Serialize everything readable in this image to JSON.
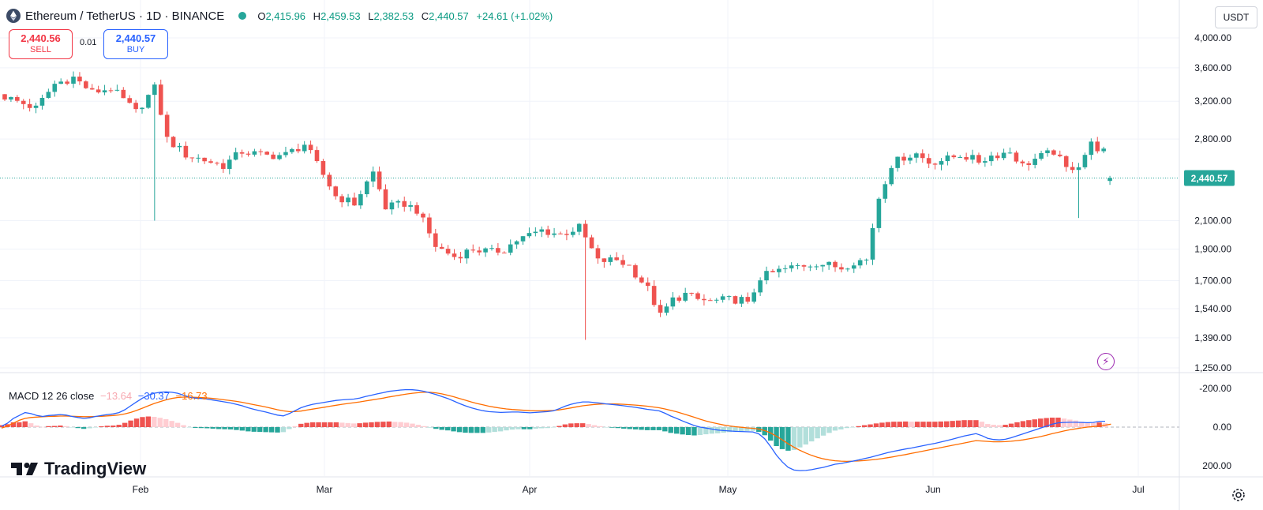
{
  "header": {
    "symbol": "Ethereum / TetherUS · 1D · BINANCE",
    "o_label": "O",
    "o": "2,415.96",
    "h_label": "H",
    "h": "2,459.53",
    "l_label": "L",
    "l": "2,382.53",
    "c_label": "C",
    "c": "2,440.57",
    "change": "+24.61 (+1.02%)"
  },
  "trade": {
    "sell_price": "2,440.56",
    "sell_label": "SELL",
    "spread": "0.01",
    "buy_price": "2,440.57",
    "buy_label": "BUY"
  },
  "currency": "USDT",
  "last_price_tag": "2,440.57",
  "macd": {
    "label": "MACD 12 26 close",
    "hist_value": "−13.64",
    "macd_value": "−30.37",
    "signal_value": "−16.73"
  },
  "brand": "TradingView",
  "colors": {
    "up": "#26a69a",
    "down": "#ef5350",
    "macd": "#2962ff",
    "signal": "#ff6d00",
    "hist_up_strong": "#26a69a",
    "hist_up_weak": "#b2dfdb",
    "hist_down_strong": "#ef5350",
    "hist_down_weak": "#ffcdd2"
  },
  "icons": [
    "exchange-logo-icon",
    "market-open-dot-icon",
    "flash-icon",
    "settings-gear-icon",
    "tradingview-logo-icon"
  ],
  "chart_data": {
    "type": "candlestick",
    "price_axis_ticks": [
      "4,000.00",
      "3,600.00",
      "3,200.00",
      "2,800.00",
      "2,440.57",
      "2,100.00",
      "1,900.00",
      "1,700.00",
      "1,540.00",
      "1,390.00",
      "1,250.00"
    ],
    "price_axis_log": true,
    "price_range": [
      1230,
      4100
    ],
    "time_ticks": [
      "Feb",
      "Mar",
      "Apr",
      "May",
      "Jun",
      "Jul"
    ],
    "macd_axis_ticks": [
      "200.00",
      "0.00",
      "-200.00"
    ],
    "macd_range": [
      -240,
      240
    ],
    "series": [
      {
        "name": "MACD",
        "values": [
          -5,
          -20,
          -45,
          -60,
          -75,
          -70,
          -60,
          -55,
          -60,
          -62,
          -65,
          -62,
          -55,
          -50,
          -45,
          -48,
          -55,
          -60,
          -65,
          -68,
          -75,
          -90,
          -110,
          -130,
          -150,
          -165,
          -175,
          -180,
          -182,
          -180,
          -175,
          -165,
          -155,
          -150,
          -148,
          -145,
          -140,
          -135,
          -130,
          -125,
          -118,
          -110,
          -100,
          -92,
          -85,
          -78,
          -70,
          -62,
          -58,
          -70,
          -85,
          -100,
          -110,
          -118,
          -123,
          -128,
          -133,
          -138,
          -141,
          -143,
          -145,
          -150,
          -158,
          -165,
          -172,
          -178,
          -185,
          -188,
          -192,
          -194,
          -193,
          -190,
          -185,
          -177,
          -168,
          -158,
          -148,
          -135,
          -122,
          -110,
          -100,
          -92,
          -85,
          -80,
          -78,
          -76,
          -77,
          -78,
          -78,
          -76,
          -74,
          -76,
          -78,
          -80,
          -84,
          -95,
          -108,
          -118,
          -125,
          -130,
          -130,
          -127,
          -124,
          -120,
          -117,
          -114,
          -110,
          -106,
          -102,
          -97,
          -92,
          -88,
          -84,
          -72,
          -57,
          -45,
          -32,
          -20,
          -8,
          0,
          5,
          10,
          15,
          18,
          20,
          22,
          23,
          24,
          25,
          35,
          60,
          100,
          145,
          180,
          208,
          222,
          225,
          224,
          220,
          214,
          208,
          200,
          192,
          188,
          182,
          176,
          170,
          163,
          156,
          148,
          140,
          132,
          125,
          119,
          113,
          108,
          102,
          96,
          90,
          84,
          77,
          70,
          62,
          54,
          46,
          40,
          34,
          44,
          58,
          64,
          66,
          63,
          55,
          45,
          35,
          25,
          15,
          5,
          -5,
          -15,
          -22,
          -24,
          -25,
          -25,
          -24,
          -23,
          -24,
          -30,
          -30
        ]
      },
      {
        "name": "Signal",
        "values": [
          5,
          -5,
          -20,
          -35,
          -45,
          -50,
          -52,
          -54,
          -55,
          -56,
          -57,
          -57,
          -56,
          -55,
          -54,
          -54,
          -55,
          -56,
          -58,
          -60,
          -63,
          -68,
          -76,
          -86,
          -98,
          -110,
          -122,
          -132,
          -141,
          -148,
          -153,
          -155,
          -155,
          -154,
          -153,
          -151,
          -148,
          -145,
          -141,
          -137,
          -133,
          -128,
          -122,
          -116,
          -110,
          -104,
          -97,
          -90,
          -84,
          -80,
          -80,
          -83,
          -88,
          -93,
          -98,
          -103,
          -108,
          -113,
          -118,
          -122,
          -126,
          -130,
          -135,
          -140,
          -145,
          -150,
          -156,
          -161,
          -166,
          -171,
          -175,
          -178,
          -180,
          -180,
          -177,
          -172,
          -165,
          -157,
          -148,
          -139,
          -130,
          -122,
          -115,
          -108,
          -103,
          -98,
          -94,
          -91,
          -89,
          -87,
          -85,
          -84,
          -84,
          -85,
          -86,
          -89,
          -94,
          -99,
          -105,
          -110,
          -114,
          -117,
          -119,
          -120,
          -120,
          -119,
          -118,
          -116,
          -114,
          -111,
          -108,
          -104,
          -100,
          -94,
          -87,
          -79,
          -70,
          -61,
          -51,
          -41,
          -32,
          -24,
          -17,
          -11,
          -6,
          -2,
          1,
          4,
          6,
          10,
          18,
          30,
          47,
          66,
          86,
          104,
          120,
          134,
          146,
          156,
          164,
          170,
          174,
          176,
          177,
          176,
          175,
          173,
          170,
          167,
          163,
          158,
          153,
          147,
          142,
          136,
          130,
          124,
          118,
          112,
          106,
          100,
          94,
          88,
          82,
          76,
          70,
          72,
          74,
          76,
          76,
          75,
          73,
          70,
          66,
          61,
          55,
          49,
          42,
          34,
          27,
          20,
          14,
          9,
          4,
          0,
          -3,
          -6,
          -10,
          -15
        ]
      }
    ]
  }
}
